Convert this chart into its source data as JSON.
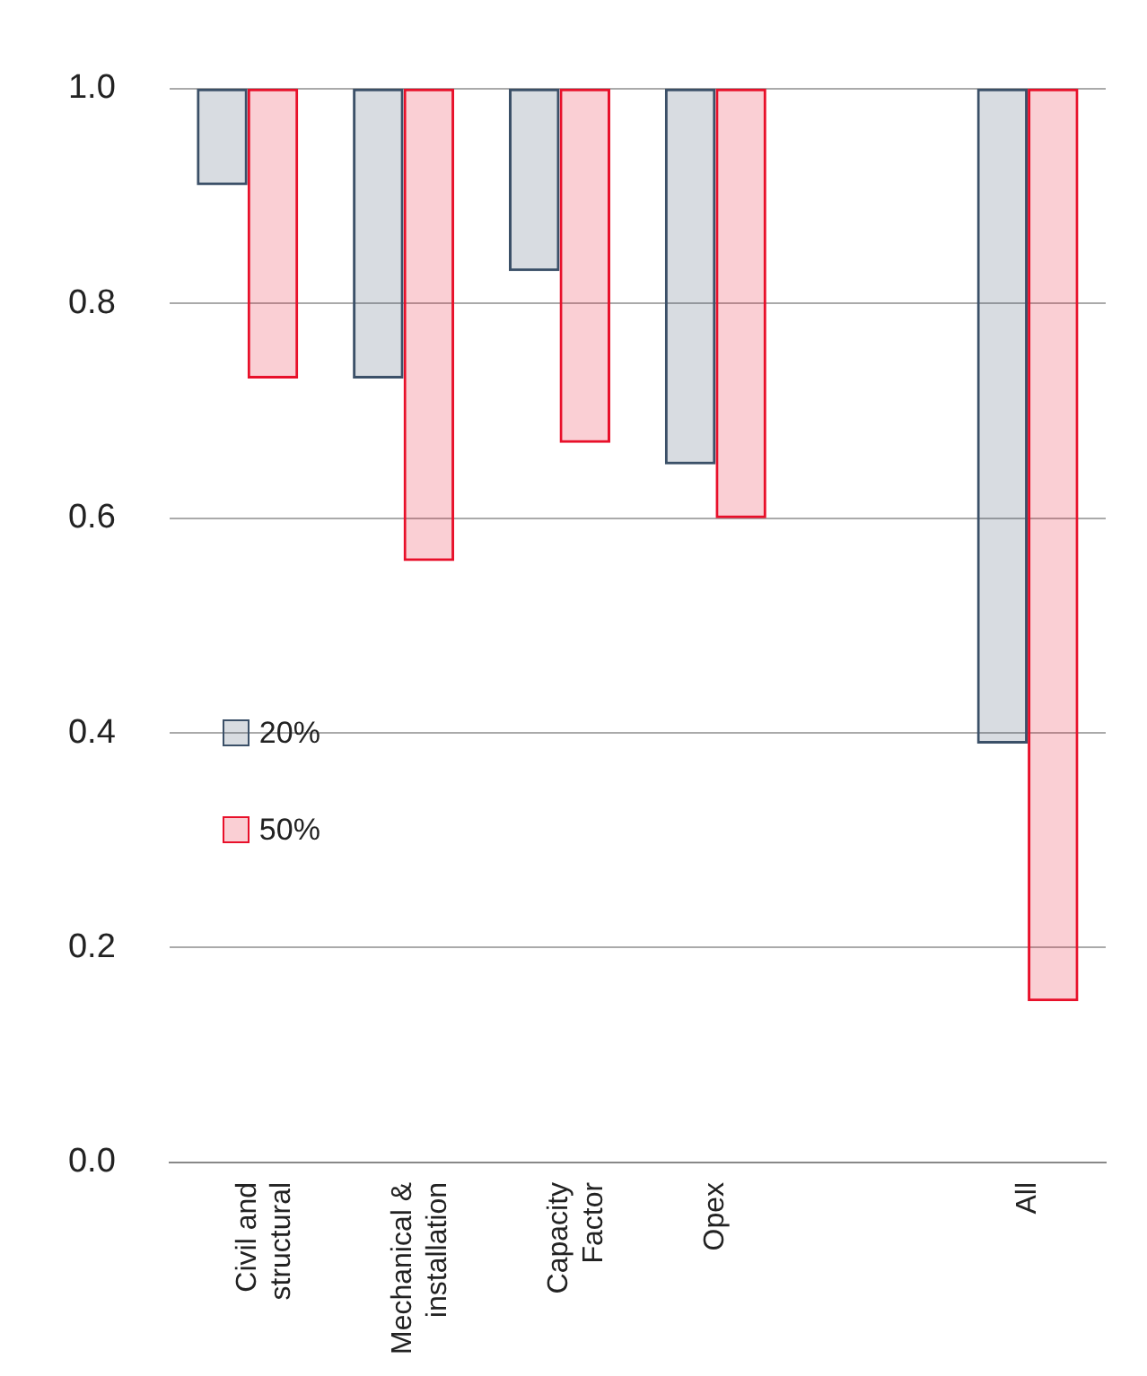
{
  "chart_data": {
    "type": "bar",
    "categories": [
      "Civil and structural",
      "Mechanical & installation",
      "Capacity Factor",
      "Opex",
      null,
      "All"
    ],
    "series": [
      {
        "name": "20%",
        "color": "#3b5068",
        "base": [
          0.91,
          0.73,
          0.83,
          0.65,
          null,
          0.39
        ],
        "values": [
          0.09,
          0.27,
          0.17,
          0.35,
          null,
          0.61
        ]
      },
      {
        "name": "50%",
        "color": "#e8102a",
        "base": [
          0.73,
          0.56,
          0.67,
          0.6,
          null,
          0.15
        ],
        "values": [
          0.27,
          0.44,
          0.33,
          0.4,
          null,
          0.85
        ]
      }
    ],
    "ylim": [
      0,
      1
    ],
    "yticks": [
      {
        "value": 0,
        "label": "0.0"
      },
      0.2,
      0.4,
      0.6,
      0.8,
      {
        "value": 1,
        "label": "1.0"
      }
    ],
    "grid": "y",
    "legend": "left"
  }
}
